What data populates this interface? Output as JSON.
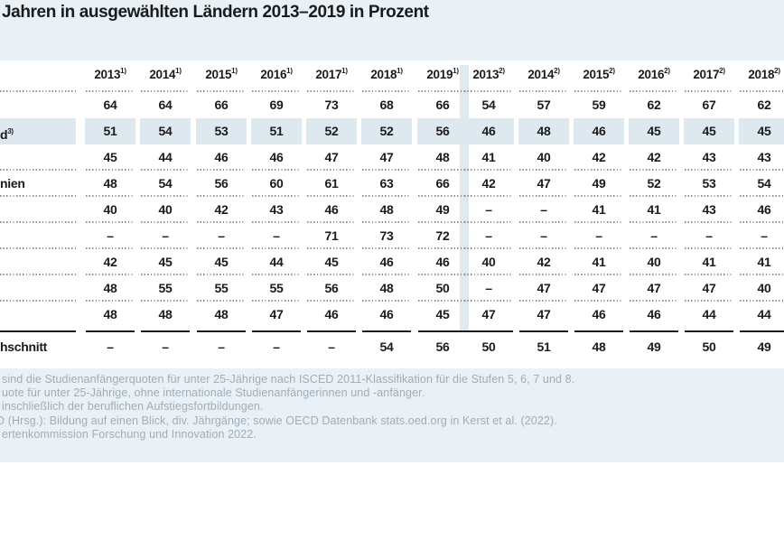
{
  "title": "Jahren in ausgewählten Ländern 2013–2019 in Prozent",
  "colors": {
    "band_blue": "#e9f1f6",
    "highlight_blue": "#dee9ef",
    "text": "#1b1b1b",
    "footnote_text": "#9fadb8"
  },
  "table": {
    "header_groups": [
      {
        "sup": "1)",
        "years": [
          "2013",
          "2014",
          "2015",
          "2016",
          "2017",
          "2018",
          "2019"
        ]
      },
      {
        "sup": "2)",
        "years": [
          "2013",
          "2014",
          "2015",
          "2016",
          "2017",
          "2018"
        ]
      }
    ],
    "rows": [
      {
        "label": "",
        "label_sup": "",
        "highlight": false,
        "g1": [
          "64",
          "64",
          "66",
          "69",
          "73",
          "68",
          "66"
        ],
        "g2": [
          "54",
          "57",
          "59",
          "62",
          "67",
          "62"
        ]
      },
      {
        "label": "d",
        "label_sup": "3)",
        "highlight": true,
        "g1": [
          "51",
          "54",
          "53",
          "51",
          "52",
          "52",
          "56"
        ],
        "g2": [
          "46",
          "48",
          "46",
          "45",
          "45",
          "45"
        ]
      },
      {
        "label": "",
        "label_sup": "",
        "highlight": false,
        "g1": [
          "45",
          "44",
          "46",
          "46",
          "47",
          "47",
          "48"
        ],
        "g2": [
          "41",
          "40",
          "42",
          "42",
          "43",
          "43"
        ]
      },
      {
        "label": "nien",
        "label_sup": "",
        "highlight": false,
        "g1": [
          "48",
          "54",
          "56",
          "60",
          "61",
          "63",
          "66"
        ],
        "g2": [
          "42",
          "47",
          "49",
          "52",
          "53",
          "54"
        ]
      },
      {
        "label": "",
        "label_sup": "",
        "highlight": false,
        "g1": [
          "40",
          "40",
          "42",
          "43",
          "46",
          "48",
          "49"
        ],
        "g2": [
          "–",
          "–",
          "41",
          "41",
          "43",
          "46"
        ]
      },
      {
        "label": "",
        "label_sup": "",
        "highlight": false,
        "g1": [
          "–",
          "–",
          "–",
          "–",
          "71",
          "73",
          "72"
        ],
        "g2": [
          "–",
          "–",
          "–",
          "–",
          "–",
          "–"
        ]
      },
      {
        "label": "",
        "label_sup": "",
        "highlight": false,
        "g1": [
          "42",
          "45",
          "45",
          "44",
          "45",
          "46",
          "46"
        ],
        "g2": [
          "40",
          "42",
          "41",
          "40",
          "41",
          "41"
        ]
      },
      {
        "label": "",
        "label_sup": "",
        "highlight": false,
        "g1": [
          "48",
          "55",
          "55",
          "55",
          "56",
          "48",
          "50"
        ],
        "g2": [
          "–",
          "47",
          "47",
          "47",
          "47",
          "40"
        ]
      },
      {
        "label": "",
        "label_sup": "",
        "highlight": false,
        "g1": [
          "48",
          "48",
          "48",
          "47",
          "46",
          "46",
          "45"
        ],
        "g2": [
          "47",
          "47",
          "46",
          "46",
          "44",
          "44"
        ]
      },
      {
        "label": "hschnitt",
        "label_sup": "",
        "highlight": false,
        "g1": [
          "–",
          "–",
          "–",
          "–",
          "–",
          "54",
          "56"
        ],
        "g2": [
          "50",
          "51",
          "48",
          "49",
          "50",
          "49"
        ]
      }
    ]
  },
  "footnotes": [
    "sind die Studienanfängerquoten für unter 25-Jährige nach ISCED 2011-Klassifikation für die Stufen 5, 6, 7 und 8.",
    "uote für unter 25-Jährige, ohne internationale Studienanfängerinnen und -anfänger.",
    "inschließlich der beruflichen Aufstiegsfortbildungen.",
    "D (Hrsg.): Bildung auf einen Blick, div. Jährgänge; sowie OECD Datenbank stats.oed.org in Kerst et al. (2022).",
    "ertenkommission Forschung und Innovation 2022."
  ]
}
